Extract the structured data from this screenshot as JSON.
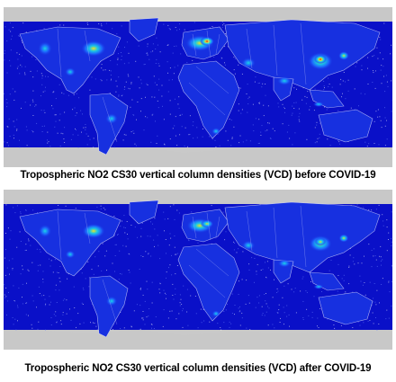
{
  "panels": [
    {
      "caption": "Tropospheric NO2 CS30 vertical column densities (VCD) before COVID-19",
      "hotspot_intensity": 1.0
    },
    {
      "caption": "Tropospheric NO2 CS30 vertical column densities (VCD) after COVID-19",
      "hotspot_intensity": 0.75
    }
  ],
  "colors": {
    "ocean": "#0a10c8",
    "ocean_deep": "#0208a8",
    "land_bg": "#1730e0",
    "polar": "#c8c8c8",
    "low": "#1e6bff",
    "mid": "#19d6e6",
    "high": "#f0e020",
    "very_high": "#e01010",
    "border": "#e8e8ff"
  }
}
